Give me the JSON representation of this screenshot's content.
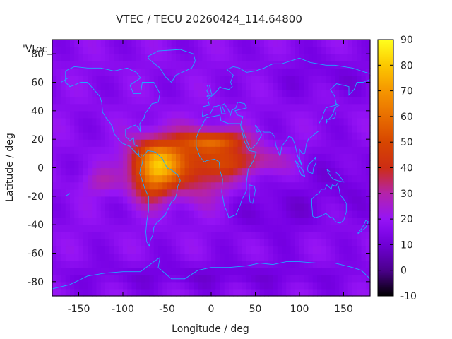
{
  "chart_data": {
    "type": "heatmap",
    "title": "VTEC / TECU 20260424_114.64800",
    "xlabel": "Longitude / deg",
    "ylabel": "Latitude / deg",
    "legend_label": "'Vtec_",
    "xlim": [
      -180,
      180
    ],
    "ylim": [
      -90,
      90
    ],
    "x_ticks": [
      -150,
      -100,
      -50,
      0,
      50,
      100,
      150
    ],
    "y_ticks": [
      -80,
      -60,
      -40,
      -20,
      0,
      20,
      40,
      60,
      80
    ],
    "colorbar": {
      "range": [
        -10,
        90
      ],
      "ticks": [
        -10,
        0,
        10,
        20,
        30,
        40,
        50,
        60,
        70,
        80,
        90
      ],
      "palette": "black-purple-red-orange-yellow"
    },
    "grid": false,
    "features": {
      "background_level": 17,
      "equatorial_anomaly_peak": 82,
      "peak_region": "South America / tropical Atlantic",
      "secondary_peak_region": "West Africa",
      "low_region": "Indian Ocean / south Pacific"
    }
  }
}
